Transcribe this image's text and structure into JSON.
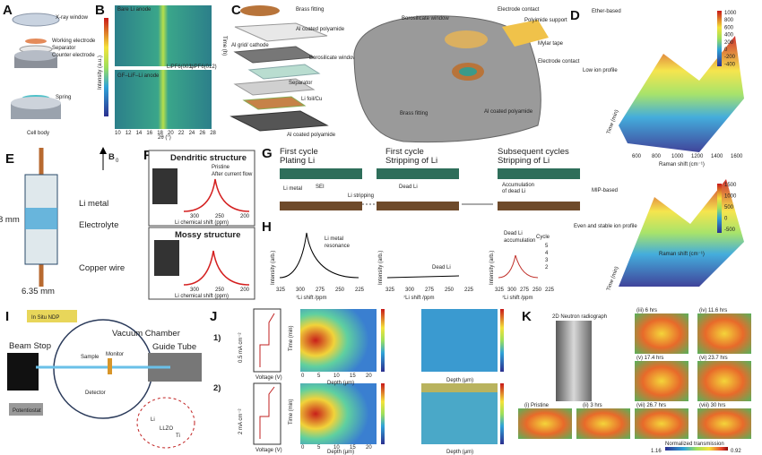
{
  "panels": {
    "A": {
      "letter": "A",
      "labels": [
        "X-ray window",
        "Working electrode",
        "Separator",
        "Counter electrode",
        "Spring",
        "Cell body"
      ]
    },
    "B": {
      "letter": "B",
      "labels": [
        "Bare Li anode",
        "GF–LiF–Li anode",
        "Intensity (a.u.)",
        "2θ (°)",
        "Time (h)",
        "LiPF6(003)",
        "LiPF6(012)"
      ],
      "xticks": [
        "10",
        "12",
        "14",
        "16",
        "18",
        "20",
        "22",
        "24",
        "26",
        "28"
      ]
    },
    "C": {
      "letter": "C",
      "labels": [
        "Brass fitting",
        "Al coated polyamide",
        "Al grid/ cathode",
        "Borosilicate window",
        "Separator",
        "Li foil/Cu",
        "Al coated polyamide",
        "Borosilicate window",
        "Electrode contact",
        "Polyimide support",
        "Mylar tape",
        "Electrode contact",
        "Brass fitting",
        "Al coated polyamide"
      ]
    },
    "D": {
      "letter": "D",
      "labels": [
        "Ether-based",
        "Low ion profile",
        "MIP-based",
        "Even and stable ion profile",
        "Raman shift (cm⁻¹)",
        "Raman shift (cm⁻¹)",
        "Time (min)",
        "Time (min)"
      ],
      "cbar1": [
        "1000",
        "800",
        "600",
        "400",
        "200",
        "0",
        "-200",
        "-400"
      ],
      "cbar2": [
        "1500",
        "1000",
        "500",
        "0",
        "-500"
      ],
      "xticks": [
        "600",
        "800",
        "1000",
        "1200",
        "1400",
        "1600"
      ]
    },
    "E": {
      "letter": "E",
      "labels": [
        "B",
        "0",
        "Li metal",
        "Electrolyte",
        "Copper wire",
        "8 mm",
        "6.35 mm"
      ]
    },
    "F": {
      "letter": "F",
      "labels": [
        "Dendritic structure",
        "Pristine",
        "After current flow",
        "Li chemical shift (ppm)",
        "Mossy structure",
        "Li chemical shift (ppm)"
      ],
      "xticks": [
        "300",
        "250",
        "200"
      ]
    },
    "G": {
      "letter": "G",
      "labels": [
        "First cycle",
        "Plating Li",
        "First cycle",
        "Stripping of Li",
        "Subsequent cycles",
        "Stripping of Li",
        "Li metal",
        "SEI",
        "Li stripping",
        "Dead Li",
        "Accumulation",
        "of dead Li"
      ]
    },
    "H": {
      "letter": "H",
      "labels": [
        "Intensity (arb.)",
        "Li metal",
        "resonance",
        "Intensity (arb.)",
        "Dead Li",
        "Intensity (arb.)",
        "Dead Li",
        "accumulation",
        "Cycle",
        "⁷Li shift /ppm",
        "⁷Li shift /ppm",
        "⁷Li shift /ppm"
      ],
      "cycles": [
        "5",
        "4",
        "3",
        "2"
      ],
      "xticks": [
        "325",
        "300",
        "275",
        "250",
        "225"
      ]
    },
    "I": {
      "letter": "I",
      "labels": [
        "In Situ NDP",
        "Vacuum Chamber",
        "Beam Stop",
        "Sample",
        "Monitor",
        "Guide Tube",
        "Detector",
        "Potentiostat",
        "Li",
        "LLZO",
        "Ti"
      ]
    },
    "J": {
      "letter": "J",
      "labels": [
        "1)",
        "2)",
        "0.5 mA cm⁻²",
        "2 mA cm⁻²",
        "Voltage (V)",
        "Voltage (V)",
        "Time (min)",
        "Time (min)",
        "Depth (μm)",
        "Depth (μm)",
        "Depth (μm)",
        "Depth (μm)"
      ],
      "depthticks": [
        "0",
        "5",
        "10",
        "15",
        "20"
      ]
    },
    "K": {
      "letter": "K",
      "labels": [
        "(iii) 6 hrs",
        "(iv) 11.6 hrs",
        "(v) 17.4 hrs",
        "(vi) 23.7 hrs",
        "(vii) 26.7 hrs",
        "(viii) 30 hrs",
        "(i) Pristine",
        "(ii) 3 hrs",
        "2D Neutron radiograph",
        "Normalized transmission",
        "1.16",
        "0.92"
      ]
    }
  }
}
